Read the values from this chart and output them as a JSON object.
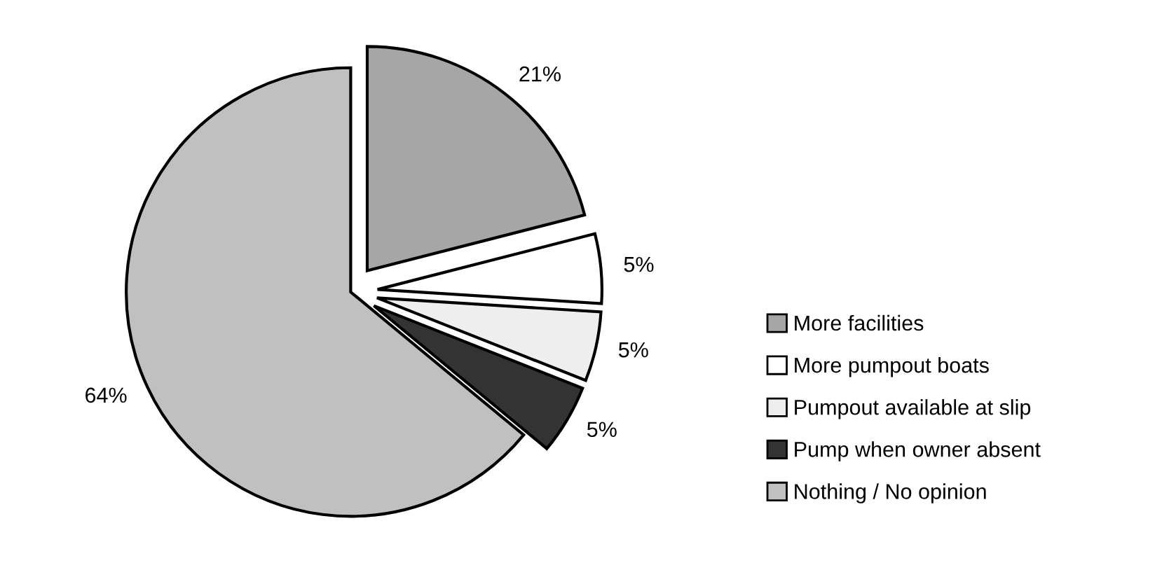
{
  "chart_data": {
    "type": "pie",
    "categories": [
      "More facilities",
      "More pumpout boats",
      "Pumpout available at slip",
      "Pump when owner absent",
      "Nothing / No opinion"
    ],
    "values": [
      21,
      5,
      5,
      5,
      64
    ],
    "value_labels": [
      "21%",
      "5%",
      "5%",
      "5%",
      "64%"
    ],
    "colors": [
      "#a6a6a6",
      "#ffffff",
      "#eeeeee",
      "#333333",
      "#c0c0c0"
    ],
    "legend": "right"
  }
}
